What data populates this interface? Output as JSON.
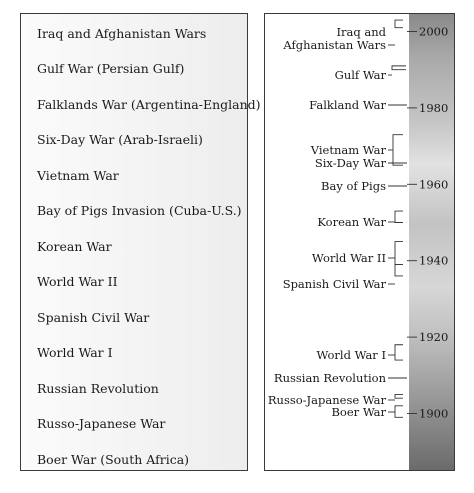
{
  "left_list": {
    "items": [
      "Iraq and Afghanistan Wars",
      "Gulf War (Persian Gulf)",
      "Falklands War (Argentina-England)",
      "Six-Day War (Arab-Israeli)",
      "Vietnam War",
      "Bay of Pigs Invasion (Cuba-U.S.)",
      "Korean War",
      "World War II",
      "Spanish Civil War",
      "World War I",
      "Russian Revolution",
      "Russo-Japanese War",
      "Boer War (South Africa)"
    ]
  },
  "timeline": {
    "years": [
      "2000",
      "1980",
      "1960",
      "1940",
      "1920",
      "1900"
    ],
    "events": [
      {
        "lines": [
          "Iraq and",
          "Afghanistan Wars"
        ],
        "start": 2001,
        "end": 2003
      },
      {
        "lines": [
          "Gulf War"
        ],
        "start": 1990,
        "end": 1991
      },
      {
        "lines": [
          "Falkland War"
        ],
        "start": 1982,
        "end": 1982
      },
      {
        "lines": [
          "Vietnam War"
        ],
        "start": 1965,
        "end": 1973
      },
      {
        "lines": [
          "Six-Day War"
        ],
        "start": 1967,
        "end": 1967
      },
      {
        "lines": [
          "Bay of Pigs"
        ],
        "start": 1961,
        "end": 1961
      },
      {
        "lines": [
          "Korean War"
        ],
        "start": 1950,
        "end": 1953
      },
      {
        "lines": [
          "World War II"
        ],
        "start": 1939,
        "end": 1945
      },
      {
        "lines": [
          "Spanish Civil War"
        ],
        "start": 1936,
        "end": 1939
      },
      {
        "lines": [
          "World War I"
        ],
        "start": 1914,
        "end": 1918
      },
      {
        "lines": [
          "Russian Revolution"
        ],
        "start": 1917,
        "end": 1917
      },
      {
        "lines": [
          "Russo-Japanese War"
        ],
        "start": 1904,
        "end": 1905
      },
      {
        "lines": [
          "Boer War"
        ],
        "start": 1899,
        "end": 1902
      }
    ]
  }
}
